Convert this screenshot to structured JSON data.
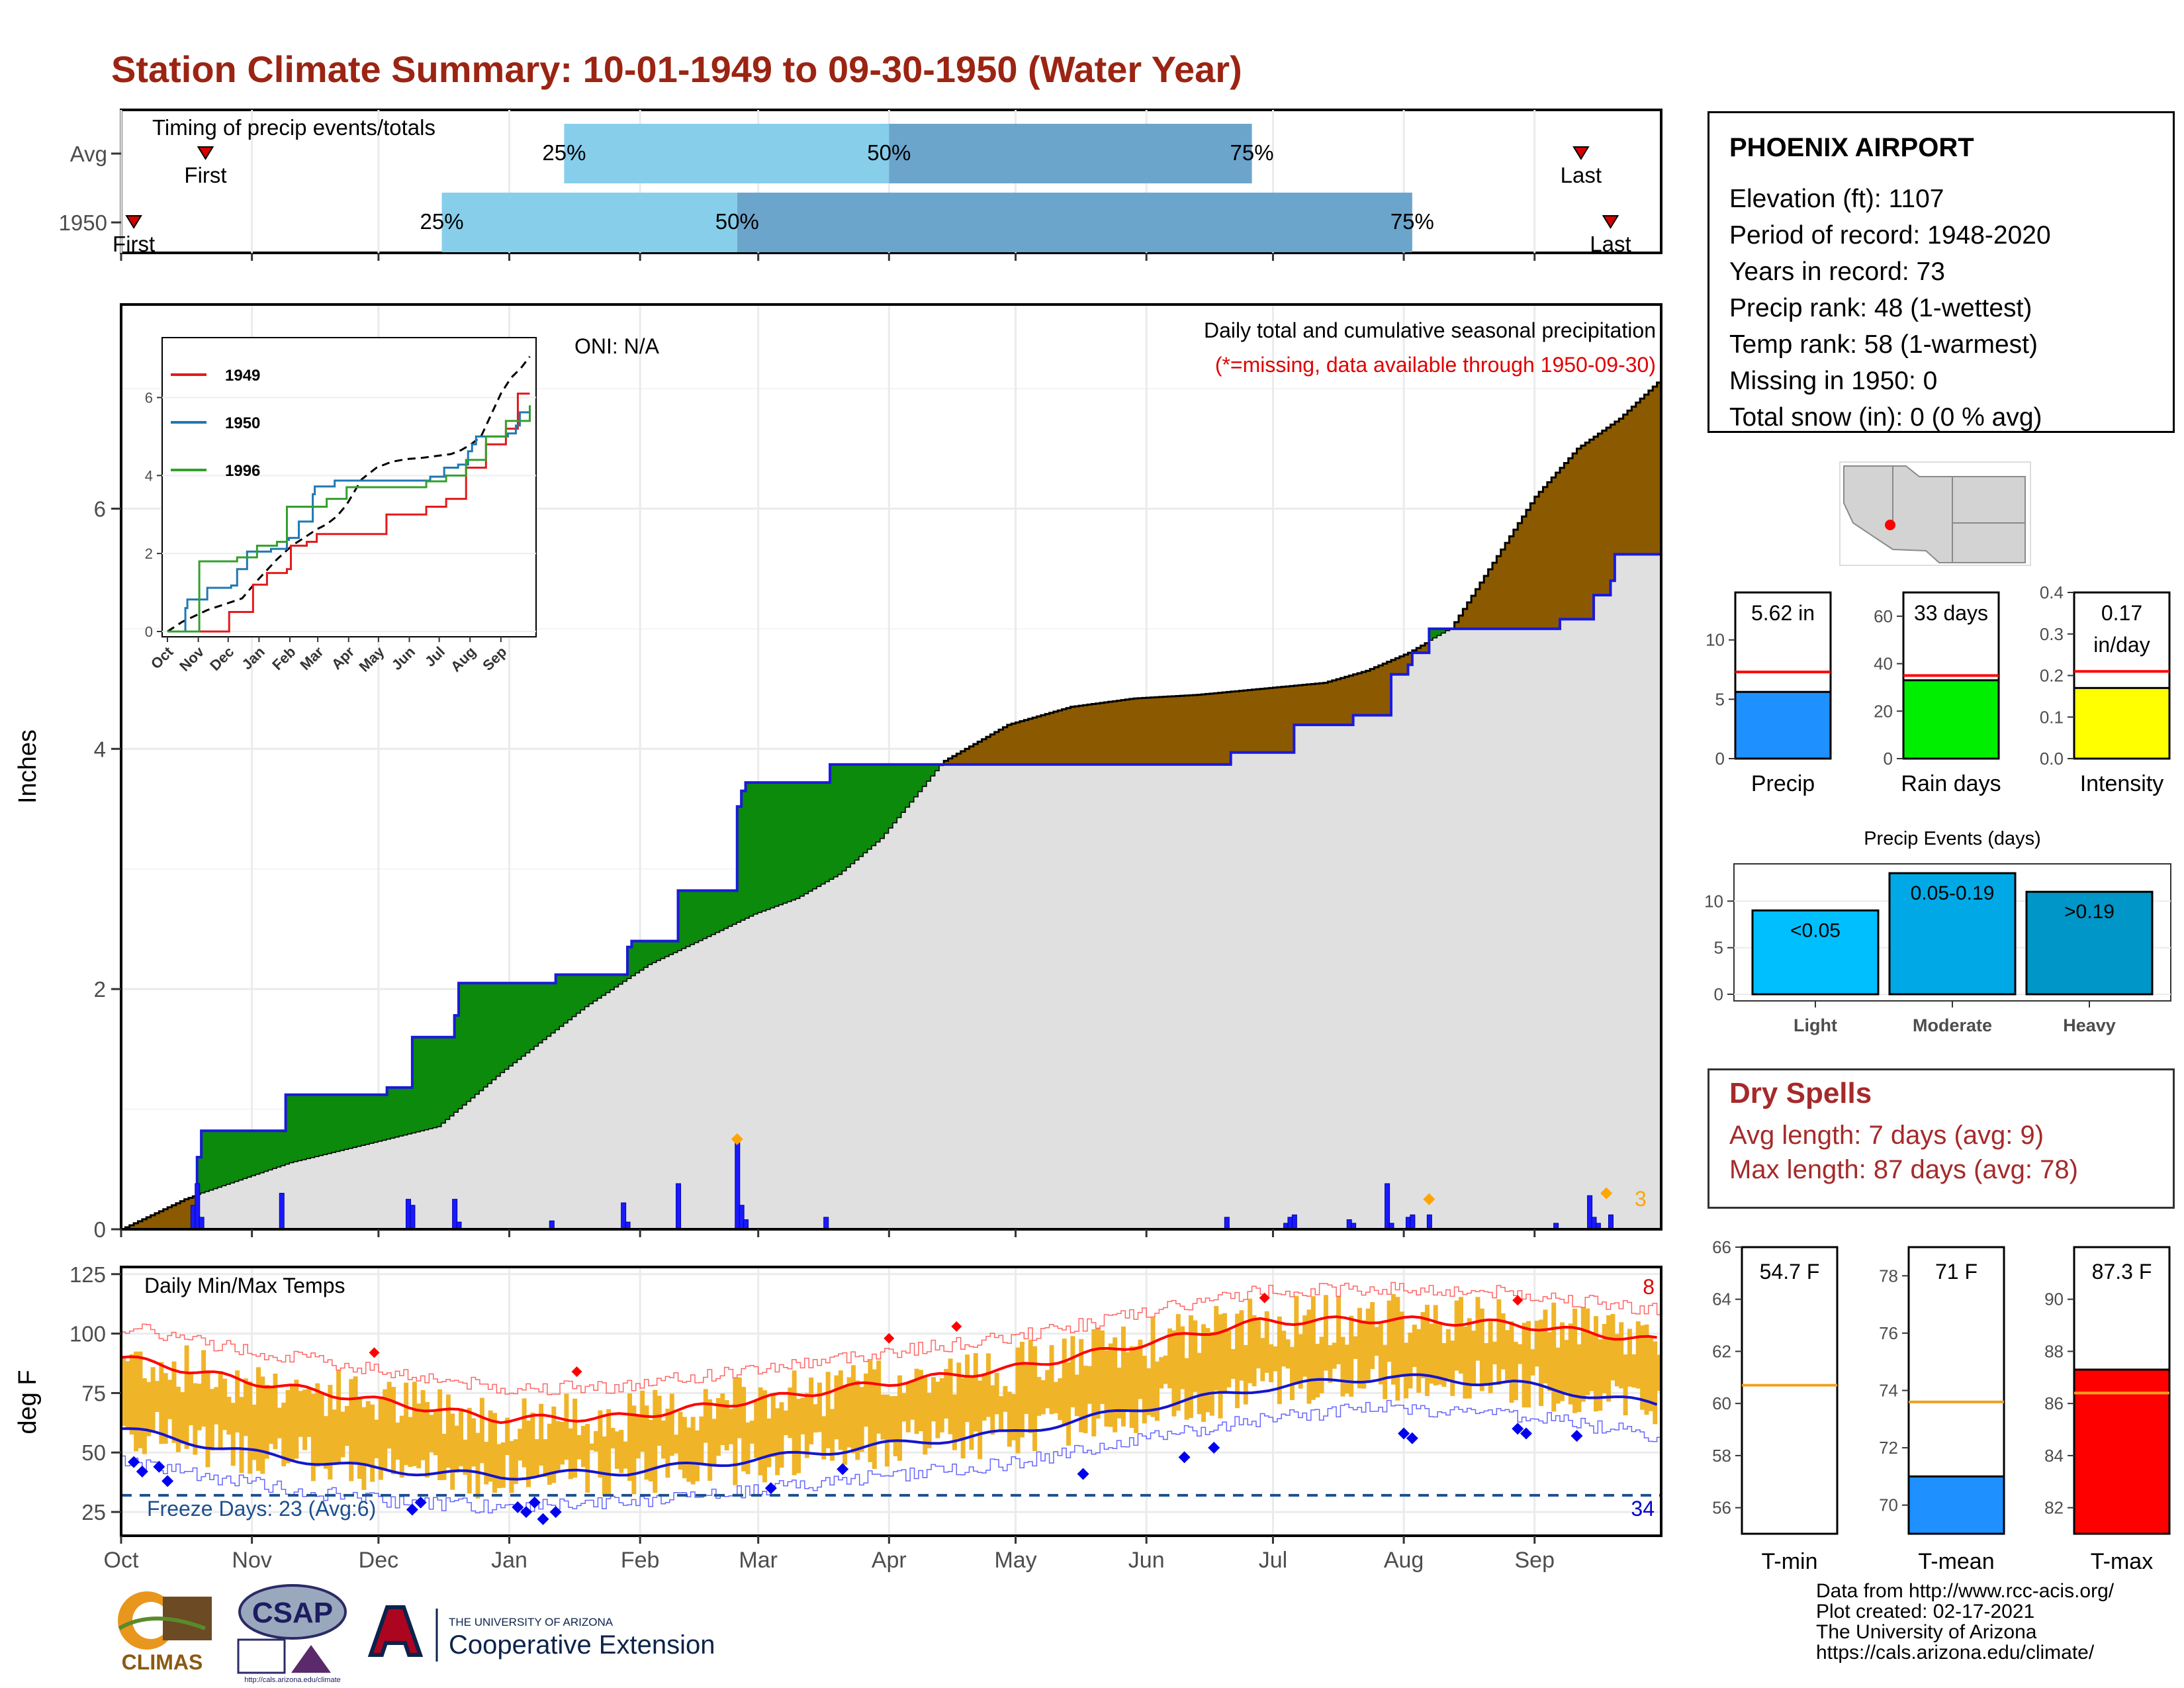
{
  "title": "Station Climate Summary: 10-01-1949 to 09-30-1950 (Water Year)",
  "colors": {
    "title": "#9b2413",
    "cumulative_avg_fill": "#8b5a00",
    "above_avg_fill": "#0b8a0b",
    "current_fill": "#e0e0e0",
    "current_line": "#1a1adb",
    "daily_bars": "#1a1aff",
    "temp_range": "#f0b428",
    "tmax_line": "#ff0000",
    "tmin_line": "#1515cc",
    "timing_light": "#87ceeb",
    "timing_dark": "#6ca5cc"
  },
  "timing": {
    "title": "Timing of precip events/totals",
    "rows": [
      {
        "label": "Avg",
        "first_label": "First",
        "last_label": "Last",
        "first_day": 20,
        "last_day": 346,
        "q25": 105,
        "q50": 182,
        "q75": 268,
        "q25_label": "25%",
        "q50_label": "50%",
        "q75_label": "75%"
      },
      {
        "label": "1950",
        "first_label": "First",
        "last_label": "Last",
        "first_day": 3,
        "last_day": 353,
        "q25": 76,
        "q50": 146,
        "q75": 306,
        "q25_label": "25%",
        "q50_label": "50%",
        "q75_label": "75%"
      }
    ]
  },
  "precip_panel": {
    "ylabel": "Inches",
    "yticks": [
      "0",
      "2",
      "4",
      "6"
    ],
    "oni": "ONI: N/A",
    "caption": "Daily total and cumulative seasonal precipitation",
    "missing_note": "(*=missing, data available through 1950-09-30)",
    "count_label": "3"
  },
  "inset": {
    "series": [
      {
        "name": "1949",
        "color": "#e31a1c"
      },
      {
        "name": "1950",
        "color": "#1f78b4"
      },
      {
        "name": "1996",
        "color": "#33a02c"
      }
    ],
    "yticks": [
      "0",
      "2",
      "4",
      "6"
    ],
    "months": [
      "Oct",
      "Nov",
      "Dec",
      "Jan",
      "Feb",
      "Mar",
      "Apr",
      "May",
      "Jun",
      "Jul",
      "Aug",
      "Sep"
    ]
  },
  "temp_panel": {
    "title": "Daily Min/Max Temps",
    "ylabel": "deg F",
    "yticks": [
      "25",
      "50",
      "75",
      "100",
      "125"
    ],
    "freeze": "Freeze Days: 23 (Avg:6)",
    "hot_count": "8",
    "cold_count": "34",
    "months": [
      "Oct",
      "Nov",
      "Dec",
      "Jan",
      "Feb",
      "Mar",
      "Apr",
      "May",
      "Jun",
      "Jul",
      "Aug",
      "Sep"
    ]
  },
  "station": {
    "name": "PHOENIX AIRPORT",
    "lines": [
      "Elevation (ft): 1107",
      "Period of record: 1948-2020",
      "Years in record: 73",
      "Precip rank: 48 (1-wettest)",
      "Temp rank: 58 (1-warmest)",
      "Missing in 1950: 0",
      "Total snow (in): 0 (0 % avg)"
    ]
  },
  "gauges": [
    {
      "label": "Precip",
      "value_text": "5.62 in",
      "value": 5.62,
      "avg": 7.3,
      "ymax": 14,
      "ticks": [
        "0",
        "5",
        "10"
      ],
      "color": "#1e90ff"
    },
    {
      "label": "Rain days",
      "value_text": "33 days",
      "value": 33,
      "avg": 35,
      "ymax": 70,
      "ticks": [
        "0",
        "20",
        "40",
        "60"
      ],
      "color": "#00ee00"
    },
    {
      "label": "Intensity",
      "value_text": "0.17 in/day",
      "value_line1": "0.17",
      "value_line2": "in/day",
      "value": 0.17,
      "avg": 0.21,
      "ymax": 0.4,
      "ticks": [
        "0.0",
        "0.1",
        "0.2",
        "0.3",
        "0.4"
      ],
      "color": "#ffff00"
    }
  ],
  "precip_events": {
    "title": "Precip Events (days)",
    "categories": [
      "Light",
      "Moderate",
      "Heavy"
    ],
    "values": [
      9,
      13,
      11
    ],
    "value_labels": [
      "<0.05",
      "0.05-0.19",
      ">0.19"
    ],
    "yticks": [
      "0",
      "5",
      "10"
    ],
    "colors": [
      "#00bfff",
      "#00a9e6",
      "#0096c7"
    ]
  },
  "dry_spells": {
    "title": "Dry Spells",
    "avg": "Avg length: 7 days (avg: 9)",
    "max": "Max length: 87 days (avg: 78)"
  },
  "temp_gauges": [
    {
      "label": "T-min",
      "value_text": "54.7 F",
      "value": 54.7,
      "avg": 60.7,
      "ymin": 55,
      "ymax": 66,
      "ticks": [
        "56",
        "58",
        "60",
        "62",
        "64",
        "66"
      ],
      "color": "#ffffff"
    },
    {
      "label": "T-mean",
      "value_text": "71 F",
      "value": 71,
      "avg": 73.6,
      "ymin": 69,
      "ymax": 79,
      "ticks": [
        "70",
        "72",
        "74",
        "76",
        "78"
      ],
      "color": "#1e90ff"
    },
    {
      "label": "T-max",
      "value_text": "87.3 F",
      "value": 87.3,
      "avg": 86.4,
      "ymin": 81,
      "ymax": 92,
      "ticks": [
        "82",
        "84",
        "86",
        "88",
        "90"
      ],
      "color": "#ff0000"
    }
  ],
  "footer": {
    "lines": [
      "Data from http://www.rcc-acis.org/",
      "Plot created: 02-17-2021",
      "The University of Arizona",
      "https://cals.arizona.edu/climate/"
    ]
  },
  "logos": {
    "climas": "CLIMAS",
    "csap": "CSAP",
    "csap_url": "http://cals.arizona.edu/climate",
    "ua_small": "THE UNIVERSITY OF ARIZONA",
    "ua_ext": "Cooperative Extension"
  },
  "chart_data": {
    "type": "area",
    "title": "Daily total and cumulative seasonal precipitation",
    "ylabel": "Inches",
    "ylim": [
      0,
      7.7
    ],
    "x_unit": "day of water year",
    "months": [
      "Oct",
      "Nov",
      "Dec",
      "Jan",
      "Feb",
      "Mar",
      "Apr",
      "May",
      "Jun",
      "Jul",
      "Aug",
      "Sep"
    ],
    "avg_cumulative": [
      [
        0,
        0
      ],
      [
        15,
        0.25
      ],
      [
        40,
        0.55
      ],
      [
        60,
        0.72
      ],
      [
        75,
        0.85
      ],
      [
        90,
        1.3
      ],
      [
        110,
        1.85
      ],
      [
        125,
        2.2
      ],
      [
        140,
        2.45
      ],
      [
        150,
        2.62
      ],
      [
        160,
        2.75
      ],
      [
        170,
        2.95
      ],
      [
        180,
        3.25
      ],
      [
        195,
        3.9
      ],
      [
        210,
        4.2
      ],
      [
        225,
        4.35
      ],
      [
        240,
        4.42
      ],
      [
        255,
        4.45
      ],
      [
        270,
        4.5
      ],
      [
        285,
        4.55
      ],
      [
        295,
        4.65
      ],
      [
        305,
        4.8
      ],
      [
        315,
        5.0
      ],
      [
        325,
        5.55
      ],
      [
        335,
        6.1
      ],
      [
        345,
        6.5
      ],
      [
        355,
        6.75
      ],
      [
        364,
        7.05
      ]
    ],
    "current_cumulative": [
      [
        0,
        0
      ],
      [
        17,
        0
      ],
      [
        18,
        0.6
      ],
      [
        19,
        0.82
      ],
      [
        38,
        0.82
      ],
      [
        39,
        1.12
      ],
      [
        62,
        1.12
      ],
      [
        63,
        1.18
      ],
      [
        68,
        1.18
      ],
      [
        69,
        1.6
      ],
      [
        78,
        1.6
      ],
      [
        79,
        1.78
      ],
      [
        80,
        2.05
      ],
      [
        102,
        2.05
      ],
      [
        103,
        2.12
      ],
      [
        119,
        2.12
      ],
      [
        120,
        2.35
      ],
      [
        121,
        2.4
      ],
      [
        131,
        2.4
      ],
      [
        132,
        2.82
      ],
      [
        145,
        2.82
      ],
      [
        146,
        3.52
      ],
      [
        147,
        3.65
      ],
      [
        148,
        3.72
      ],
      [
        167,
        3.72
      ],
      [
        168,
        3.87
      ],
      [
        262,
        3.87
      ],
      [
        263,
        3.97
      ],
      [
        277,
        3.97
      ],
      [
        278,
        4.2
      ],
      [
        291,
        4.2
      ],
      [
        292,
        4.28
      ],
      [
        300,
        4.28
      ],
      [
        301,
        4.62
      ],
      [
        304,
        4.62
      ],
      [
        305,
        4.7
      ],
      [
        306,
        4.8
      ],
      [
        309,
        4.8
      ],
      [
        310,
        5.0
      ],
      [
        340,
        5.0
      ],
      [
        341,
        5.08
      ],
      [
        348,
        5.08
      ],
      [
        349,
        5.28
      ],
      [
        353,
        5.4
      ],
      [
        354,
        5.62
      ],
      [
        364,
        5.62
      ]
    ],
    "daily_precip": [
      [
        17,
        0.2
      ],
      [
        18,
        0.38
      ],
      [
        19,
        0.1
      ],
      [
        38,
        0.3
      ],
      [
        68,
        0.25
      ],
      [
        69,
        0.2
      ],
      [
        79,
        0.25
      ],
      [
        80,
        0.06
      ],
      [
        102,
        0.07
      ],
      [
        119,
        0.22
      ],
      [
        120,
        0.06
      ],
      [
        132,
        0.38
      ],
      [
        146,
        0.72
      ],
      [
        147,
        0.2
      ],
      [
        148,
        0.08
      ],
      [
        167,
        0.1
      ],
      [
        262,
        0.1
      ],
      [
        276,
        0.05
      ],
      [
        277,
        0.1
      ],
      [
        278,
        0.12
      ],
      [
        291,
        0.08
      ],
      [
        292,
        0.05
      ],
      [
        300,
        0.38
      ],
      [
        301,
        0.05
      ],
      [
        305,
        0.1
      ],
      [
        306,
        0.12
      ],
      [
        310,
        0.12
      ],
      [
        340,
        0.05
      ],
      [
        348,
        0.28
      ],
      [
        349,
        0.1
      ],
      [
        350,
        0.05
      ],
      [
        353,
        0.12
      ]
    ],
    "temps": {
      "ylim": [
        15,
        128
      ],
      "freeze_line": 32,
      "avg_tmax": [
        [
          0,
          90
        ],
        [
          30,
          80
        ],
        [
          60,
          72
        ],
        [
          90,
          64
        ],
        [
          120,
          65
        ],
        [
          150,
          72
        ],
        [
          180,
          79
        ],
        [
          210,
          85
        ],
        [
          240,
          95
        ],
        [
          270,
          105
        ],
        [
          300,
          106
        ],
        [
          330,
          104
        ],
        [
          364,
          97
        ]
      ],
      "avg_tmin": [
        [
          0,
          60
        ],
        [
          30,
          50
        ],
        [
          60,
          43
        ],
        [
          90,
          40
        ],
        [
          120,
          42
        ],
        [
          150,
          47
        ],
        [
          180,
          53
        ],
        [
          210,
          58
        ],
        [
          240,
          68
        ],
        [
          270,
          77
        ],
        [
          300,
          82
        ],
        [
          330,
          79
        ],
        [
          364,
          70
        ]
      ],
      "record_high_pts": [
        [
          60,
          92
        ],
        [
          108,
          84
        ],
        [
          182,
          98
        ],
        [
          198,
          103
        ],
        [
          271,
          115
        ],
        [
          331,
          114
        ]
      ],
      "record_low_pts": [
        [
          3,
          46
        ],
        [
          5,
          42
        ],
        [
          9,
          44
        ],
        [
          11,
          38
        ],
        [
          69,
          26
        ],
        [
          71,
          29
        ],
        [
          94,
          27
        ],
        [
          96,
          25
        ],
        [
          98,
          29
        ],
        [
          100,
          22
        ],
        [
          103,
          25
        ],
        [
          154,
          35
        ],
        [
          171,
          43
        ],
        [
          228,
          41
        ],
        [
          252,
          48
        ],
        [
          259,
          52
        ],
        [
          304,
          58
        ],
        [
          306,
          56
        ],
        [
          331,
          60
        ],
        [
          333,
          58
        ],
        [
          345,
          57
        ]
      ]
    }
  }
}
